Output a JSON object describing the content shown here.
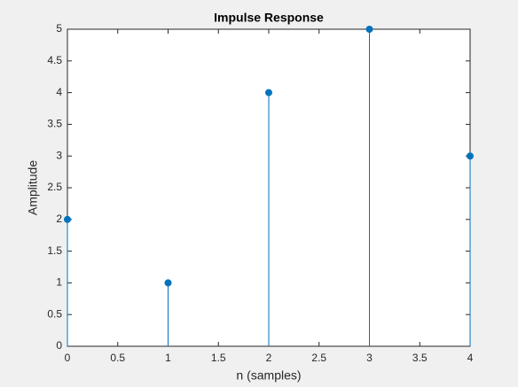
{
  "chart_data": {
    "type": "stem",
    "title": "Impulse Response",
    "x_label": "n (samples)",
    "y_label": "Amplitude",
    "x": [
      0,
      1,
      2,
      3,
      4
    ],
    "values": [
      2,
      1,
      4,
      5,
      3
    ],
    "color": "#0072bd",
    "xlim": [
      0,
      4
    ],
    "xticks": [
      0,
      0.5,
      1,
      1.5,
      2,
      2.5,
      3,
      3.5,
      4
    ],
    "ylim": [
      0,
      5
    ],
    "yticks": [
      0,
      0.5,
      1,
      1.5,
      2,
      2.5,
      3,
      3.5,
      4,
      4.5,
      5
    ]
  }
}
